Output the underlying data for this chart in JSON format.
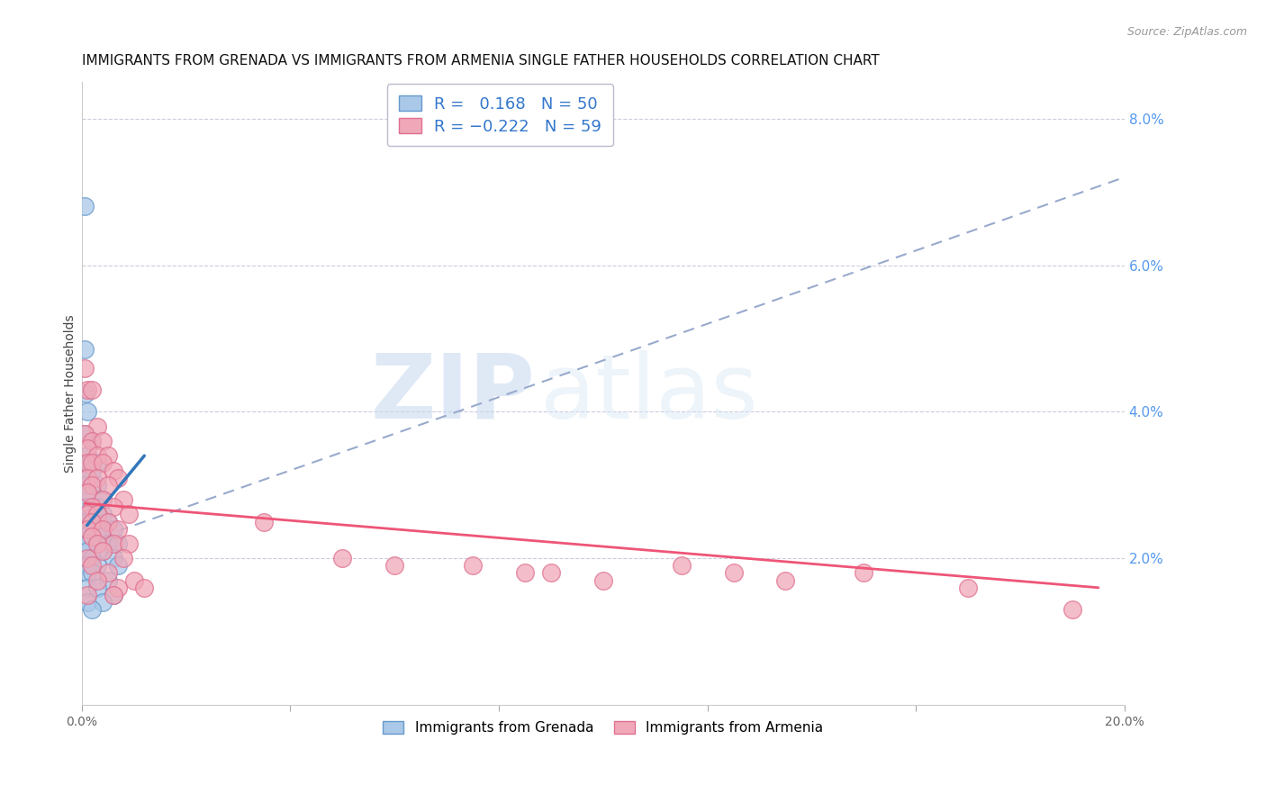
{
  "title": "IMMIGRANTS FROM GRENADA VS IMMIGRANTS FROM ARMENIA SINGLE FATHER HOUSEHOLDS CORRELATION CHART",
  "source": "Source: ZipAtlas.com",
  "ylabel": "Single Father Households",
  "xlim": [
    0.0,
    0.2
  ],
  "ylim": [
    0.0,
    0.085
  ],
  "xticks": [
    0.0,
    0.04,
    0.08,
    0.12,
    0.16,
    0.2
  ],
  "xtick_labels": [
    "0.0%",
    "",
    "",
    "",
    "",
    "20.0%"
  ],
  "yticks_right": [
    0.0,
    0.02,
    0.04,
    0.06,
    0.08
  ],
  "ytick_labels_right": [
    "",
    "2.0%",
    "4.0%",
    "6.0%",
    "8.0%"
  ],
  "grenada_color": "#aac8e8",
  "armenia_color": "#f0a8b8",
  "grenada_edge": "#6699cc",
  "armenia_edge": "#e07090",
  "trend_grenada_color": "#3377bb",
  "trend_armenia_color": "#ee5577",
  "dashed_line_color": "#99aacc",
  "watermark_zip": "ZIP",
  "watermark_atlas": "atlas",
  "legend_label_grenada": "Immigrants from Grenada",
  "legend_label_armenia": "Immigrants from Armenia",
  "background_color": "#ffffff",
  "grid_color": "#ccccdd",
  "title_fontsize": 11,
  "axis_label_fontsize": 10,
  "tick_fontsize": 10,
  "right_tick_color": "#5599ee",
  "grenada_points": [
    [
      0.0005,
      0.0485
    ],
    [
      0.0008,
      0.0425
    ],
    [
      0.001,
      0.04
    ],
    [
      0.0005,
      0.037
    ],
    [
      0.002,
      0.036
    ],
    [
      0.001,
      0.034
    ],
    [
      0.0015,
      0.033
    ],
    [
      0.003,
      0.033
    ],
    [
      0.002,
      0.032
    ],
    [
      0.001,
      0.031
    ],
    [
      0.0005,
      0.03
    ],
    [
      0.002,
      0.03
    ],
    [
      0.003,
      0.03
    ],
    [
      0.001,
      0.029
    ],
    [
      0.004,
      0.028
    ],
    [
      0.0005,
      0.027
    ],
    [
      0.002,
      0.027
    ],
    [
      0.003,
      0.027
    ],
    [
      0.001,
      0.026
    ],
    [
      0.004,
      0.026
    ],
    [
      0.0005,
      0.025
    ],
    [
      0.002,
      0.025
    ],
    [
      0.005,
      0.025
    ],
    [
      0.001,
      0.024
    ],
    [
      0.003,
      0.024
    ],
    [
      0.006,
      0.024
    ],
    [
      0.0005,
      0.023
    ],
    [
      0.002,
      0.023
    ],
    [
      0.004,
      0.023
    ],
    [
      0.001,
      0.022
    ],
    [
      0.003,
      0.022
    ],
    [
      0.005,
      0.022
    ],
    [
      0.007,
      0.022
    ],
    [
      0.001,
      0.021
    ],
    [
      0.004,
      0.021
    ],
    [
      0.002,
      0.02
    ],
    [
      0.006,
      0.02
    ],
    [
      0.001,
      0.019
    ],
    [
      0.003,
      0.019
    ],
    [
      0.007,
      0.019
    ],
    [
      0.001,
      0.018
    ],
    [
      0.002,
      0.018
    ],
    [
      0.005,
      0.017
    ],
    [
      0.001,
      0.016
    ],
    [
      0.003,
      0.016
    ],
    [
      0.006,
      0.015
    ],
    [
      0.001,
      0.014
    ],
    [
      0.004,
      0.014
    ],
    [
      0.002,
      0.013
    ],
    [
      0.0006,
      0.068
    ]
  ],
  "armenia_points": [
    [
      0.0005,
      0.046
    ],
    [
      0.001,
      0.043
    ],
    [
      0.002,
      0.043
    ],
    [
      0.003,
      0.038
    ],
    [
      0.0005,
      0.037
    ],
    [
      0.002,
      0.036
    ],
    [
      0.004,
      0.036
    ],
    [
      0.001,
      0.035
    ],
    [
      0.003,
      0.034
    ],
    [
      0.005,
      0.034
    ],
    [
      0.001,
      0.033
    ],
    [
      0.002,
      0.033
    ],
    [
      0.004,
      0.033
    ],
    [
      0.006,
      0.032
    ],
    [
      0.001,
      0.031
    ],
    [
      0.003,
      0.031
    ],
    [
      0.007,
      0.031
    ],
    [
      0.002,
      0.03
    ],
    [
      0.005,
      0.03
    ],
    [
      0.001,
      0.029
    ],
    [
      0.004,
      0.028
    ],
    [
      0.008,
      0.028
    ],
    [
      0.002,
      0.027
    ],
    [
      0.006,
      0.027
    ],
    [
      0.001,
      0.026
    ],
    [
      0.003,
      0.026
    ],
    [
      0.009,
      0.026
    ],
    [
      0.002,
      0.025
    ],
    [
      0.005,
      0.025
    ],
    [
      0.001,
      0.024
    ],
    [
      0.004,
      0.024
    ],
    [
      0.007,
      0.024
    ],
    [
      0.002,
      0.023
    ],
    [
      0.006,
      0.022
    ],
    [
      0.003,
      0.022
    ],
    [
      0.009,
      0.022
    ],
    [
      0.004,
      0.021
    ],
    [
      0.001,
      0.02
    ],
    [
      0.008,
      0.02
    ],
    [
      0.002,
      0.019
    ],
    [
      0.005,
      0.018
    ],
    [
      0.003,
      0.017
    ],
    [
      0.007,
      0.016
    ],
    [
      0.001,
      0.015
    ],
    [
      0.006,
      0.015
    ],
    [
      0.01,
      0.017
    ],
    [
      0.012,
      0.016
    ],
    [
      0.035,
      0.025
    ],
    [
      0.05,
      0.02
    ],
    [
      0.06,
      0.019
    ],
    [
      0.075,
      0.019
    ],
    [
      0.085,
      0.018
    ],
    [
      0.09,
      0.018
    ],
    [
      0.1,
      0.017
    ],
    [
      0.115,
      0.019
    ],
    [
      0.125,
      0.018
    ],
    [
      0.135,
      0.017
    ],
    [
      0.15,
      0.018
    ],
    [
      0.17,
      0.016
    ],
    [
      0.19,
      0.013
    ]
  ],
  "grenada_trend_x": [
    0.001,
    0.012
  ],
  "grenada_trend_y_start": 0.0245,
  "grenada_trend_y_end": 0.034,
  "armenia_trend_x": [
    0.0005,
    0.195
  ],
  "armenia_trend_y_start": 0.0275,
  "armenia_trend_y_end": 0.016,
  "dashed_trend_x": [
    0.0,
    0.2
  ],
  "dashed_trend_y_start": 0.022,
  "dashed_trend_y_end": 0.072
}
